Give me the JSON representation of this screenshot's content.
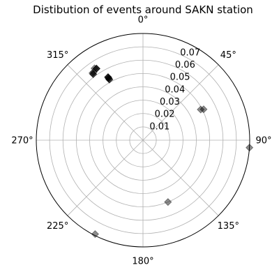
{
  "chart_data": {
    "type": "scatter",
    "projection": "polar",
    "title": "Distibution of events around SAKN station",
    "theta_zero_location": "N",
    "theta_direction": "clockwise",
    "rlim": [
      0,
      0.08
    ],
    "r_ticks": [
      0.01,
      0.02,
      0.03,
      0.04,
      0.05,
      0.06,
      0.07
    ],
    "r_tick_labels": [
      "0.01",
      "0.02",
      "0.03",
      "0.04",
      "0.05",
      "0.06",
      "0.07"
    ],
    "theta_ticks_deg": [
      0,
      45,
      90,
      135,
      180,
      225,
      270,
      315
    ],
    "theta_tick_labels": [
      "0°",
      "45°",
      "90°",
      "135°",
      "180°",
      "225°",
      "270°",
      "315°"
    ],
    "grid": true,
    "marker": "diamond",
    "marker_color": "#000000",
    "marker_alpha": 0.45,
    "points": [
      {
        "theta": 326,
        "r": 0.065
      },
      {
        "theta": 327,
        "r": 0.064
      },
      {
        "theta": 327,
        "r": 0.064
      },
      {
        "theta": 327,
        "r": 0.064
      },
      {
        "theta": 323,
        "r": 0.063
      },
      {
        "theta": 323,
        "r": 0.062
      },
      {
        "theta": 323,
        "r": 0.062
      },
      {
        "theta": 324,
        "r": 0.063
      },
      {
        "theta": 331,
        "r": 0.054
      },
      {
        "theta": 331,
        "r": 0.054
      },
      {
        "theta": 331,
        "r": 0.054
      },
      {
        "theta": 331,
        "r": 0.053
      },
      {
        "theta": 331,
        "r": 0.053
      },
      {
        "theta": 331,
        "r": 0.052
      },
      {
        "theta": 331,
        "r": 0.052
      },
      {
        "theta": 62,
        "r": 0.049
      },
      {
        "theta": 63,
        "r": 0.051
      },
      {
        "theta": 94,
        "r": 0.08
      },
      {
        "theta": 158,
        "r": 0.05
      },
      {
        "theta": 207,
        "r": 0.079
      }
    ]
  }
}
